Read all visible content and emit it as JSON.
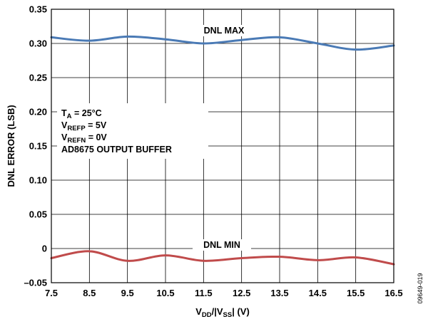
{
  "chart_data": {
    "type": "line",
    "xlabel": {
      "main": "V",
      "sub1": "DD",
      "mid": "/|V",
      "sub2": "SS",
      "end": "| (V)"
    },
    "ylabel": "DNL ERROR (LSB)",
    "xlim": [
      7.5,
      16.5
    ],
    "ylim": [
      -0.05,
      0.35
    ],
    "x_ticks": [
      "7.5",
      "8.5",
      "9.5",
      "10.5",
      "11.5",
      "12.5",
      "13.5",
      "14.5",
      "15.5",
      "16.5"
    ],
    "y_ticks": [
      "–0.05",
      "0",
      "0.05",
      "0.10",
      "0.15",
      "0.20",
      "0.25",
      "0.30",
      "0.35"
    ],
    "grid": true,
    "x": [
      7.5,
      8.5,
      9.5,
      10.5,
      11.5,
      12.5,
      13.5,
      14.5,
      15.5,
      16.5
    ],
    "series": [
      {
        "name": "DNL MAX",
        "color": "#4a7ab5",
        "values": [
          0.309,
          0.304,
          0.31,
          0.306,
          0.3,
          0.305,
          0.309,
          0.3,
          0.291,
          0.297
        ]
      },
      {
        "name": "DNL MIN",
        "color": "#c04b4b",
        "values": [
          -0.014,
          -0.004,
          -0.018,
          -0.01,
          -0.018,
          -0.014,
          -0.012,
          -0.017,
          -0.013,
          -0.023
        ]
      }
    ],
    "conditions": [
      {
        "main": "T",
        "sub": "A",
        "rest": " = 25°C"
      },
      {
        "main": "V",
        "sub": "REFP",
        "rest": " = 5V"
      },
      {
        "main": "V",
        "sub": "REFN",
        "rest": " = 0V"
      },
      {
        "main": "AD8675 OUTPUT BUFFER",
        "sub": "",
        "rest": ""
      }
    ],
    "figure_id": "09649-019"
  }
}
